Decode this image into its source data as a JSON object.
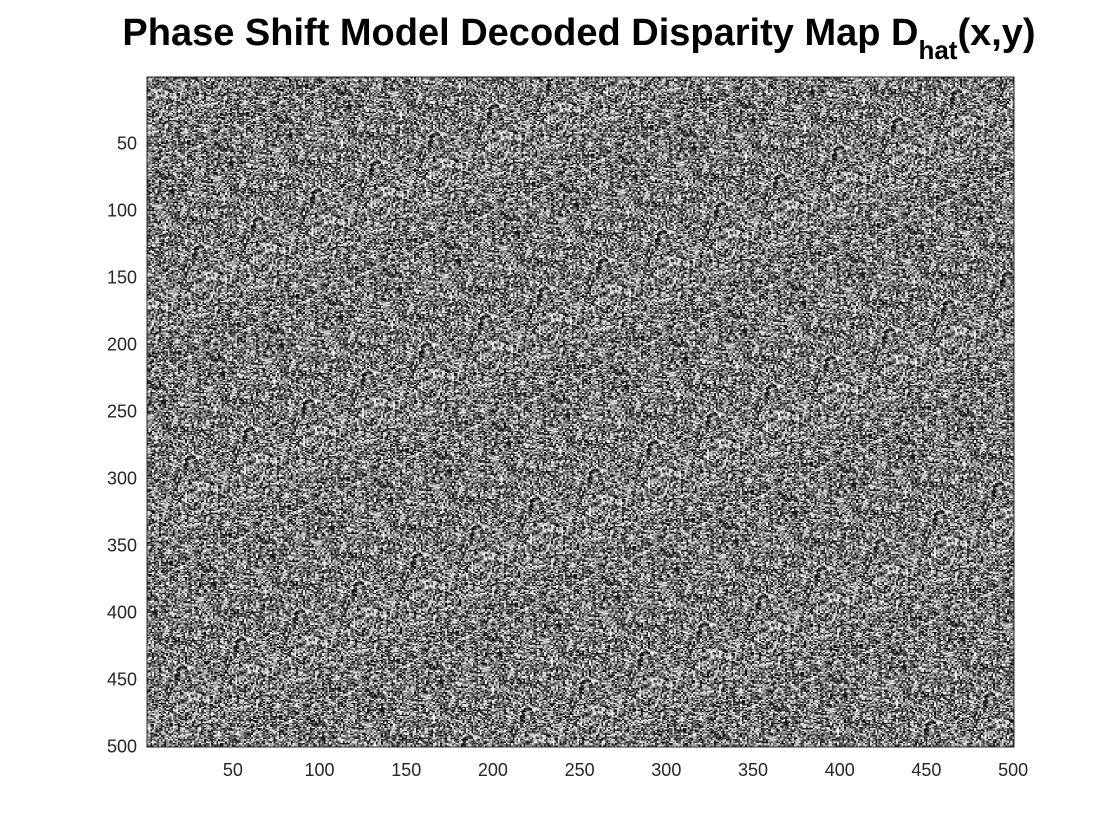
{
  "chart_data": {
    "type": "heatmap",
    "title": {
      "main": "Phase Shift Model Decoded Disparity Map D",
      "subscript": "hat",
      "suffix": "(x,y)"
    },
    "colormap": "gray",
    "image_size": [
      500,
      500
    ],
    "pattern": "random noise, low contrast",
    "xlim": [
      0.5,
      500.5
    ],
    "ylim": [
      0.5,
      500.5
    ],
    "y_direction": "reverse",
    "x_ticks": [
      50,
      100,
      150,
      200,
      250,
      300,
      350,
      400,
      450,
      500
    ],
    "y_ticks": [
      50,
      100,
      150,
      200,
      250,
      300,
      350,
      400,
      450,
      500
    ],
    "x_tick_labels": [
      "50",
      "100",
      "150",
      "200",
      "250",
      "300",
      "350",
      "400",
      "450",
      "500"
    ],
    "y_tick_labels": [
      "50",
      "100",
      "150",
      "200",
      "250",
      "300",
      "350",
      "400",
      "450",
      "500"
    ],
    "grid": false,
    "legend": "none"
  }
}
